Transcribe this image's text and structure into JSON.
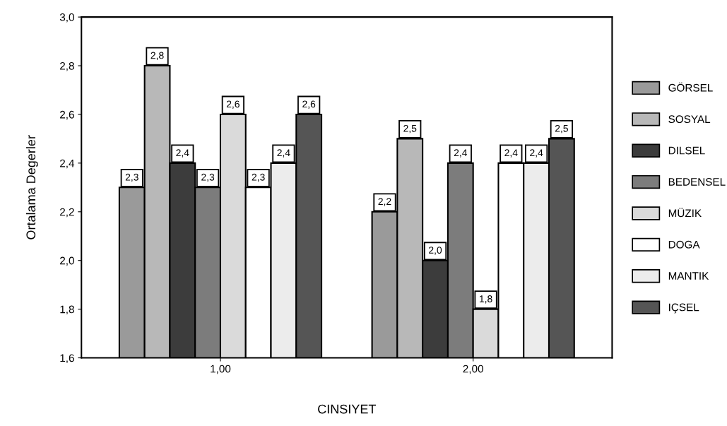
{
  "chart_data": {
    "type": "bar",
    "xlabel": "CINSIYET",
    "ylabel": "Ortalama Degerler",
    "categories": [
      "1,00",
      "2,00"
    ],
    "series": [
      {
        "name": "GÖRSEL",
        "color": "#9a9a9a",
        "values": [
          2.3,
          2.2
        ]
      },
      {
        "name": "SOSYAL",
        "color": "#b8b8b8",
        "values": [
          2.8,
          2.5
        ]
      },
      {
        "name": "DILSEL",
        "color": "#3c3c3c",
        "values": [
          2.4,
          2.0
        ]
      },
      {
        "name": "BEDENSEL",
        "color": "#7c7c7c",
        "values": [
          2.3,
          2.4
        ]
      },
      {
        "name": "MÜZIK",
        "color": "#dadada",
        "values": [
          2.6,
          1.8
        ]
      },
      {
        "name": "DOGA",
        "color": "#ffffff",
        "values": [
          2.3,
          2.4
        ]
      },
      {
        "name": "MANTIK",
        "color": "#ececec",
        "values": [
          2.4,
          2.4
        ]
      },
      {
        "name": "IÇSEL",
        "color": "#555555",
        "values": [
          2.6,
          2.5
        ]
      }
    ],
    "value_labels": [
      [
        "2,3",
        "2,2"
      ],
      [
        "2,8",
        "2,5"
      ],
      [
        "2,4",
        "2,0"
      ],
      [
        "2,3",
        "2,4"
      ],
      [
        "2,6",
        "1,8"
      ],
      [
        "2,3",
        "2,4"
      ],
      [
        "2,4",
        "2,4"
      ],
      [
        "2,6",
        "2,5"
      ]
    ],
    "ylim": [
      1.6,
      3.0
    ],
    "yticks": [
      {
        "value": 1.6,
        "label": "1,6"
      },
      {
        "value": 1.8,
        "label": "1,8"
      },
      {
        "value": 2.0,
        "label": "2,0"
      },
      {
        "value": 2.2,
        "label": "2,2"
      },
      {
        "value": 2.4,
        "label": "2,4"
      },
      {
        "value": 2.6,
        "label": "2,6"
      },
      {
        "value": 2.8,
        "label": "2,8"
      },
      {
        "value": 3.0,
        "label": "3,0"
      }
    ],
    "grid": false,
    "legend": "right"
  }
}
